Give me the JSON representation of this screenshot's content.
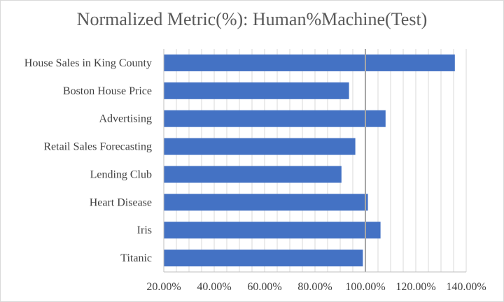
{
  "chart_data": {
    "type": "bar",
    "orientation": "horizontal",
    "title": "Normalized Metric(%): Human%Machine(Test)",
    "xlabel": "",
    "ylabel": "",
    "categories": [
      "House Sales in King County",
      "Boston House Price",
      "Advertising",
      "Retail Sales Forecasting",
      "Lending Club",
      "Heart Disease",
      "Iris",
      "Titanic"
    ],
    "values": [
      135.5,
      93.5,
      108,
      96,
      90.5,
      101,
      106,
      99
    ],
    "xlim": [
      20,
      140
    ],
    "xticks": [
      "20.00%",
      "40.00%",
      "60.00%",
      "80.00%",
      "100.00%",
      "120.00%",
      "140.00%"
    ],
    "xtick_values": [
      20,
      40,
      60,
      80,
      100,
      120,
      140
    ],
    "reference_line": 100,
    "grid": true,
    "legend": "none",
    "bar_color": "#4472C4",
    "grid_color": "#d9d9d9",
    "reference_line_color": "#a6a6a6"
  }
}
